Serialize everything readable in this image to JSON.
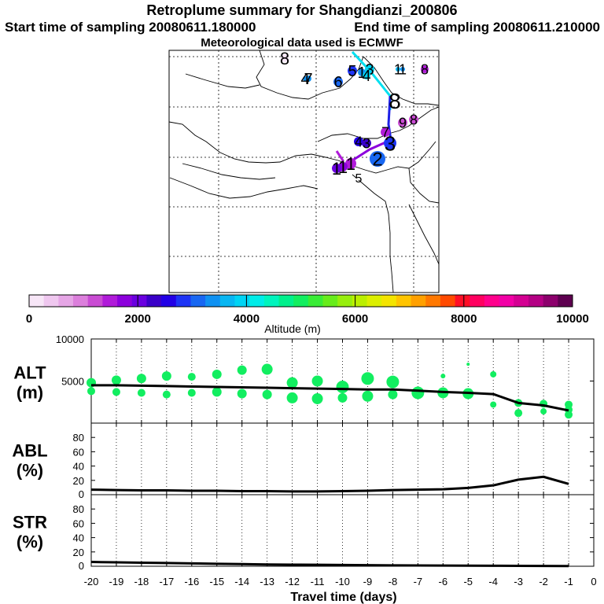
{
  "header": {
    "title": "Retroplume summary for Shangdianzi_200806",
    "start_label": "Start time of sampling 20080611.180000",
    "end_label": "End time of sampling 20080611.210000",
    "met_label": "Meteorological data used is ECMWF"
  },
  "colorbar": {
    "tick_labels": [
      "0",
      "2000",
      "4000",
      "6000",
      "8000",
      "10000"
    ],
    "label": "Altitude (m)",
    "colors": [
      "#f7e6f7",
      "#efc7ef",
      "#e6a6e6",
      "#dc7fdc",
      "#c94cd3",
      "#b01bd9",
      "#8c00dc",
      "#6a00e0",
      "#3a00c8",
      "#2200e6",
      "#1d34f5",
      "#1867f2",
      "#0f91f2",
      "#09b6f2",
      "#00d4f4",
      "#00ece8",
      "#00f4bd",
      "#00f08c",
      "#12ee60",
      "#39ec36",
      "#67ec1b",
      "#97ee0d",
      "#bbef00",
      "#dcef00",
      "#f4e400",
      "#ffc400",
      "#ffa000",
      "#ff7800",
      "#ff4a00",
      "#ff0f26",
      "#ff0060",
      "#ff008c",
      "#f200a6",
      "#d40092",
      "#b40084",
      "#8c006c",
      "#5e0050"
    ]
  },
  "map": {
    "markers": [
      {
        "label": "8",
        "color": "#f7e6f7"
      },
      {
        "label": "7",
        "color": "#0f91f2"
      },
      {
        "label": "4",
        "color": "#0f91f2"
      },
      {
        "label": "6",
        "color": "#1867f2"
      },
      {
        "label": "5",
        "color": "#1d34f5"
      },
      {
        "label": "1",
        "color": "#0f91f2"
      },
      {
        "label": "3",
        "color": "#00d4f4"
      },
      {
        "label": "4",
        "color": "#00d4f4"
      },
      {
        "label": "1",
        "color": "#09b6f2"
      },
      {
        "label": "1",
        "color": "#0f91f2"
      },
      {
        "label": "8",
        "color": "#b01bd9"
      },
      {
        "label": "8",
        "color": "#ffffff"
      },
      {
        "label": "9",
        "color": "#c94cd3"
      },
      {
        "label": "8",
        "color": "#c94cd3"
      },
      {
        "label": "7",
        "color": "#b01bd9"
      },
      {
        "label": "4",
        "color": "#2200e6"
      },
      {
        "label": "3",
        "color": "#3a00c8"
      },
      {
        "label": "3",
        "color": "#1d34f5"
      },
      {
        "label": "2",
        "color": "#1867f2"
      },
      {
        "label": "1",
        "color": "#b01bd9"
      },
      {
        "label": "1",
        "color": "#8c00dc"
      },
      {
        "label": "1",
        "color": "#6a00e0"
      },
      {
        "label": "5",
        "color": "#ffffff"
      }
    ]
  },
  "chart_data": [
    {
      "type": "line",
      "name": "ALT",
      "ylabel": "ALT\n(m)",
      "ylabel_lines": [
        "ALT",
        "(m)"
      ],
      "ylim": [
        0,
        10000
      ],
      "yticks": [
        0,
        5000,
        10000
      ],
      "ytick_labels": [
        "",
        "5000",
        "10000"
      ],
      "xlim": [
        -20,
        0
      ],
      "x": [
        -20,
        -19,
        -18,
        -17,
        -16,
        -15,
        -14,
        -13,
        -12,
        -11,
        -10,
        -9,
        -8,
        -7,
        -6,
        -5,
        -4,
        -3,
        -2,
        -1
      ],
      "mean_values": [
        4500,
        4500,
        4450,
        4400,
        4350,
        4300,
        4250,
        4200,
        4150,
        4100,
        4050,
        4000,
        4000,
        3850,
        3700,
        3600,
        3450,
        2400,
        2100,
        1500
      ],
      "scatter_color": "#12ee60",
      "scatter_points": [
        [
          -20,
          4800
        ],
        [
          -20,
          3800
        ],
        [
          -19,
          5100
        ],
        [
          -19,
          3700
        ],
        [
          -18,
          5300
        ],
        [
          -18,
          3600
        ],
        [
          -17,
          5600
        ],
        [
          -17,
          3400
        ],
        [
          -16,
          5500
        ],
        [
          -16,
          3600
        ],
        [
          -15,
          5800
        ],
        [
          -15,
          3700
        ],
        [
          -14,
          6300
        ],
        [
          -14,
          3500
        ],
        [
          -13,
          6400
        ],
        [
          -13,
          3400
        ],
        [
          -12,
          4800
        ],
        [
          -12,
          3000
        ],
        [
          -11,
          5000
        ],
        [
          -11,
          2900
        ],
        [
          -10,
          4300
        ],
        [
          -10,
          3000
        ],
        [
          -9,
          5300
        ],
        [
          -9,
          3200
        ],
        [
          -8,
          4900
        ],
        [
          -8,
          3400
        ],
        [
          -7,
          3600
        ],
        [
          -6,
          3600
        ],
        [
          -6,
          5600
        ],
        [
          -5,
          3500
        ],
        [
          -5,
          7000
        ],
        [
          -4,
          5800
        ],
        [
          -4,
          2200
        ],
        [
          -3,
          2400
        ],
        [
          -3,
          1200
        ],
        [
          -2,
          2300
        ],
        [
          -2,
          1400
        ],
        [
          -1,
          2200
        ],
        [
          -1,
          1600
        ],
        [
          -1,
          1000
        ]
      ]
    },
    {
      "type": "line",
      "name": "ABL",
      "ylabel": "ABL\n(%)",
      "ylabel_lines": [
        "ABL",
        "(%)"
      ],
      "ylim": [
        0,
        100
      ],
      "yticks": [
        0,
        20,
        40,
        60,
        80
      ],
      "ytick_labels": [
        "0",
        "20",
        "40",
        "60",
        "80"
      ],
      "xlim": [
        -20,
        0
      ],
      "x": [
        -20,
        -19,
        -18,
        -17,
        -16,
        -15,
        -14,
        -13,
        -12,
        -11,
        -10,
        -9,
        -8,
        -7,
        -6,
        -5,
        -4,
        -3,
        -2,
        -1
      ],
      "values": [
        7,
        6.5,
        6,
        6,
        5.5,
        5.5,
        5,
        5,
        4.5,
        4.5,
        5,
        5.5,
        6.5,
        7,
        7.5,
        9.5,
        13,
        21,
        25,
        15
      ]
    },
    {
      "type": "line",
      "name": "STR",
      "ylabel": "STR\n(%)",
      "ylabel_lines": [
        "STR",
        "(%)"
      ],
      "ylim": [
        0,
        100
      ],
      "yticks": [
        0,
        20,
        40,
        60,
        80
      ],
      "ytick_labels": [
        "0",
        "20",
        "40",
        "60",
        "80"
      ],
      "xlim": [
        -20,
        0
      ],
      "xlabel": "Travel time (days)",
      "xticks": [
        -20,
        -19,
        -18,
        -17,
        -16,
        -15,
        -14,
        -13,
        -12,
        -11,
        -10,
        -9,
        -8,
        -7,
        -6,
        -5,
        -4,
        -3,
        -2,
        -1,
        0
      ],
      "xtick_labels": [
        "-20",
        "-19",
        "-18",
        "-17",
        "-16",
        "-15",
        "-14",
        "-13",
        "-12",
        "-11",
        "-10",
        "-9",
        "-8",
        "-7",
        "-6",
        "-5",
        "-4",
        "-3",
        "-2",
        "-1",
        "0"
      ],
      "x": [
        -20,
        -19,
        -18,
        -17,
        -16,
        -15,
        -14,
        -13,
        -12,
        -11,
        -10,
        -9,
        -8,
        -7,
        -6,
        -5,
        -4,
        -3,
        -2,
        -1
      ],
      "values": [
        6,
        5.5,
        5,
        4.5,
        4,
        3.5,
        3,
        2.5,
        2.2,
        2,
        1.8,
        1.5,
        1.3,
        1.1,
        1,
        0.8,
        0.7,
        0.5,
        0.4,
        0.3
      ]
    }
  ]
}
